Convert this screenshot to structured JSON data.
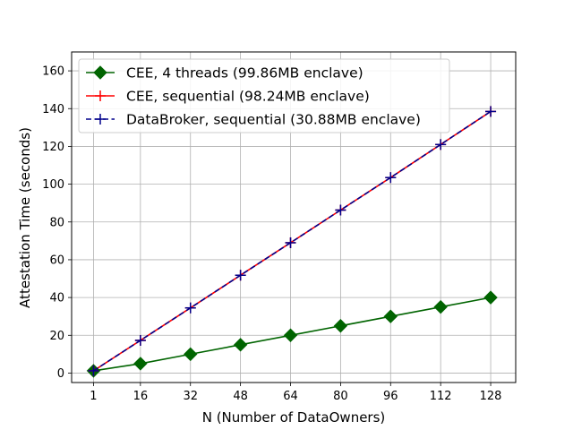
{
  "chart_data": {
    "type": "line",
    "xlabel": "N (Number of DataOwners)",
    "ylabel": "Attestation Time (seconds)",
    "xlim": [
      -6,
      136
    ],
    "ylim": [
      -5,
      170
    ],
    "x_ticks": [
      1,
      16,
      32,
      48,
      64,
      80,
      96,
      112,
      128
    ],
    "y_ticks": [
      0,
      20,
      40,
      60,
      80,
      100,
      120,
      140,
      160
    ],
    "grid": true,
    "legend_position": "top-left",
    "x": [
      1,
      16,
      32,
      48,
      64,
      80,
      96,
      112,
      128
    ],
    "series": [
      {
        "name": "CEE, 4 threads (99.86MB enclave)",
        "color": "#006400",
        "line_style": "solid",
        "marker": "diamond",
        "values": [
          1.2,
          5.0,
          10.0,
          15.0,
          20.0,
          25.0,
          30.0,
          35.0,
          40.0
        ]
      },
      {
        "name": "CEE, sequential (98.24MB enclave)",
        "color": "#ff0000",
        "line_style": "solid",
        "marker": "plus",
        "values": [
          1.2,
          17.3,
          34.5,
          51.8,
          69.0,
          86.3,
          103.5,
          121.0,
          138.5
        ]
      },
      {
        "name": "DataBroker, sequential (30.88MB enclave)",
        "color": "#00008b",
        "line_style": "dashed",
        "marker": "plus",
        "values": [
          1.2,
          17.3,
          34.5,
          51.8,
          69.0,
          86.3,
          103.5,
          121.0,
          138.5
        ]
      }
    ]
  }
}
